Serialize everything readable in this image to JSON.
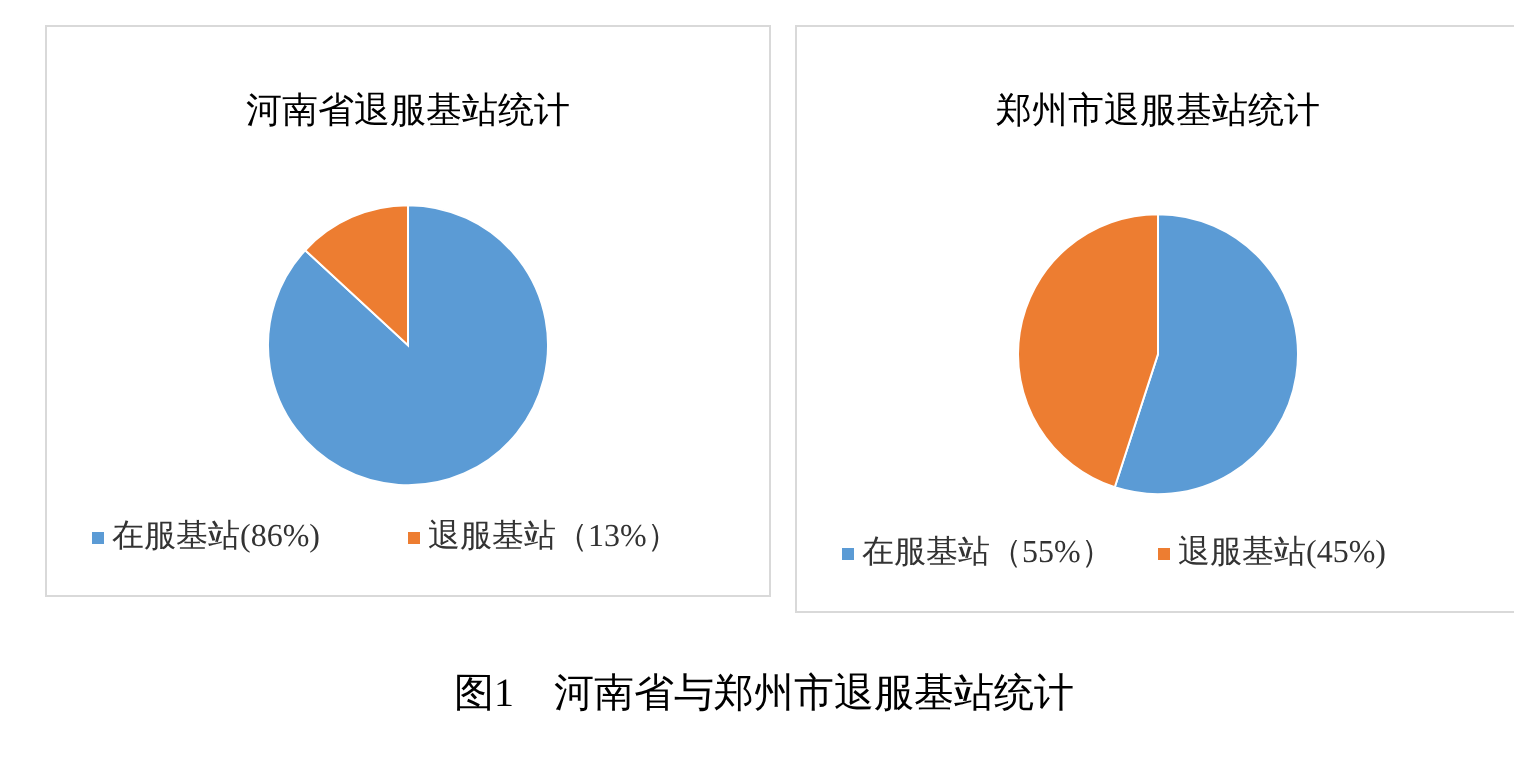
{
  "chart_data": [
    {
      "type": "pie",
      "title": "河南省退服基站统计",
      "categories": [
        "在服基站(86%)",
        "退服基站（13%）"
      ],
      "values": [
        86,
        13
      ],
      "colors": [
        "#5b9bd5",
        "#ed7d31"
      ],
      "legend": "bottom",
      "annotations": [
        "图1    河南省与郑州市退服基站统计"
      ]
    },
    {
      "type": "pie",
      "title": "郑州市退服基站统计",
      "categories": [
        "在服基站（55%）",
        "退服基站(45%)"
      ],
      "values": [
        55,
        45
      ],
      "colors": [
        "#5b9bd5",
        "#ed7d31"
      ],
      "legend": "bottom"
    }
  ]
}
